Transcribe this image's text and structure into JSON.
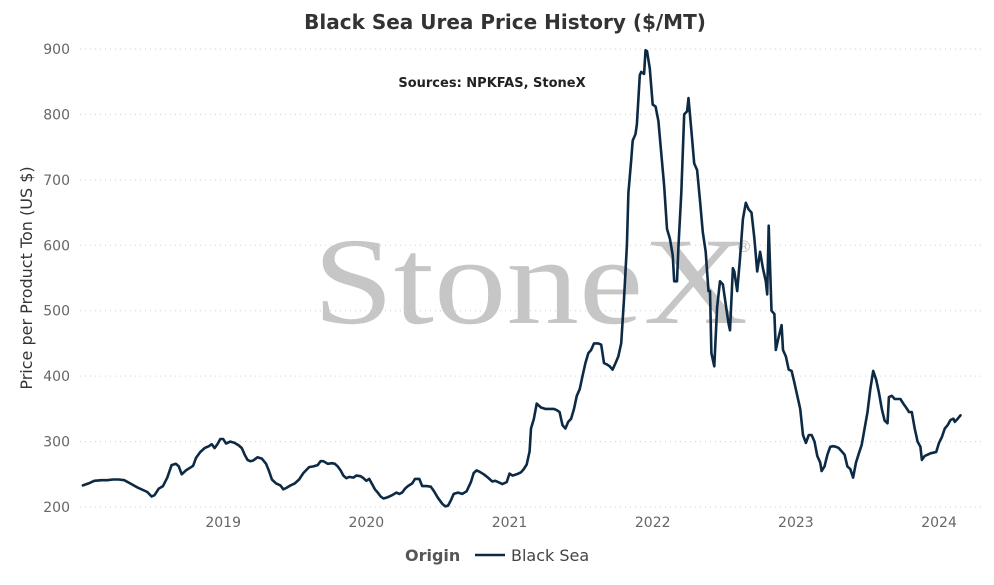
{
  "chart_data": {
    "type": "line",
    "title": "Black Sea Urea Price History ($/MT)",
    "subtitle": "Sources: NPKFAS, StoneX",
    "ylabel": "Price per Product Ton (US $)",
    "xlabel": "",
    "ylim": [
      200,
      900
    ],
    "yticks": [
      "200",
      "300",
      "400",
      "500",
      "600",
      "700",
      "800",
      "900"
    ],
    "xlim": [
      2018.0,
      2024.3
    ],
    "xticks": [
      {
        "value": 2019.0,
        "label": "2019"
      },
      {
        "value": 2020.0,
        "label": "2020"
      },
      {
        "value": 2021.0,
        "label": "2021"
      },
      {
        "value": 2022.0,
        "label": "2022"
      },
      {
        "value": 2023.0,
        "label": "2023"
      },
      {
        "value": 2024.0,
        "label": "2024"
      }
    ],
    "grid": "horizontal dotted",
    "legend": {
      "title": "Origin",
      "position": "bottom-center"
    },
    "watermark": "StoneX",
    "series": [
      {
        "name": "Black Sea",
        "color": "#0d2a45",
        "points": [
          [
            2018.02,
            233
          ],
          [
            2018.06,
            236
          ],
          [
            2018.1,
            240
          ],
          [
            2018.15,
            241
          ],
          [
            2018.19,
            241
          ],
          [
            2018.23,
            242
          ],
          [
            2018.27,
            242
          ],
          [
            2018.31,
            241
          ],
          [
            2018.35,
            236
          ],
          [
            2018.4,
            230
          ],
          [
            2018.44,
            226
          ],
          [
            2018.47,
            223
          ],
          [
            2018.5,
            216
          ],
          [
            2018.52,
            218
          ],
          [
            2018.55,
            228
          ],
          [
            2018.58,
            232
          ],
          [
            2018.61,
            245
          ],
          [
            2018.64,
            264
          ],
          [
            2018.67,
            266
          ],
          [
            2018.69,
            262
          ],
          [
            2018.71,
            250
          ],
          [
            2018.74,
            256
          ],
          [
            2018.77,
            260
          ],
          [
            2018.79,
            263
          ],
          [
            2018.81,
            275
          ],
          [
            2018.84,
            284
          ],
          [
            2018.87,
            290
          ],
          [
            2018.9,
            293
          ],
          [
            2018.92,
            296
          ],
          [
            2018.94,
            290
          ],
          [
            2018.96,
            296
          ],
          [
            2018.98,
            304
          ],
          [
            2019.0,
            304
          ],
          [
            2019.02,
            297
          ],
          [
            2019.05,
            300
          ],
          [
            2019.08,
            298
          ],
          [
            2019.11,
            294
          ],
          [
            2019.13,
            290
          ],
          [
            2019.15,
            280
          ],
          [
            2019.17,
            272
          ],
          [
            2019.19,
            270
          ],
          [
            2019.21,
            271
          ],
          [
            2019.24,
            276
          ],
          [
            2019.27,
            274
          ],
          [
            2019.3,
            266
          ],
          [
            2019.32,
            255
          ],
          [
            2019.34,
            242
          ],
          [
            2019.37,
            236
          ],
          [
            2019.4,
            233
          ],
          [
            2019.42,
            227
          ],
          [
            2019.44,
            229
          ],
          [
            2019.47,
            233
          ],
          [
            2019.5,
            236
          ],
          [
            2019.53,
            242
          ],
          [
            2019.56,
            252
          ],
          [
            2019.6,
            261
          ],
          [
            2019.63,
            262
          ],
          [
            2019.66,
            264
          ],
          [
            2019.68,
            270
          ],
          [
            2019.7,
            270
          ],
          [
            2019.73,
            266
          ],
          [
            2019.76,
            267
          ],
          [
            2019.78,
            266
          ],
          [
            2019.8,
            262
          ],
          [
            2019.82,
            256
          ],
          [
            2019.84,
            248
          ],
          [
            2019.86,
            244
          ],
          [
            2019.88,
            246
          ],
          [
            2019.91,
            245
          ],
          [
            2019.93,
            248
          ],
          [
            2019.96,
            247
          ],
          [
            2019.98,
            244
          ],
          [
            2020.0,
            240
          ],
          [
            2020.02,
            243
          ],
          [
            2020.04,
            235
          ],
          [
            2020.06,
            227
          ],
          [
            2020.08,
            222
          ],
          [
            2020.1,
            216
          ],
          [
            2020.12,
            213
          ],
          [
            2020.15,
            215
          ],
          [
            2020.18,
            218
          ],
          [
            2020.21,
            222
          ],
          [
            2020.23,
            220
          ],
          [
            2020.25,
            222
          ],
          [
            2020.27,
            228
          ],
          [
            2020.29,
            232
          ],
          [
            2020.32,
            236
          ],
          [
            2020.34,
            243
          ],
          [
            2020.37,
            243
          ],
          [
            2020.39,
            232
          ],
          [
            2020.42,
            232
          ],
          [
            2020.45,
            231
          ],
          [
            2020.47,
            225
          ],
          [
            2020.5,
            214
          ],
          [
            2020.53,
            205
          ],
          [
            2020.55,
            201
          ],
          [
            2020.57,
            202
          ],
          [
            2020.59,
            210
          ],
          [
            2020.61,
            220
          ],
          [
            2020.64,
            222
          ],
          [
            2020.67,
            220
          ],
          [
            2020.7,
            224
          ],
          [
            2020.73,
            238
          ],
          [
            2020.75,
            252
          ],
          [
            2020.77,
            256
          ],
          [
            2020.79,
            254
          ],
          [
            2020.82,
            250
          ],
          [
            2020.85,
            245
          ],
          [
            2020.88,
            239
          ],
          [
            2020.9,
            240
          ],
          [
            2020.92,
            238
          ],
          [
            2020.95,
            235
          ],
          [
            2020.98,
            238
          ],
          [
            2021.0,
            251
          ],
          [
            2021.02,
            248
          ],
          [
            2021.05,
            250
          ],
          [
            2021.08,
            253
          ],
          [
            2021.1,
            258
          ],
          [
            2021.12,
            265
          ],
          [
            2021.14,
            285
          ],
          [
            2021.15,
            320
          ],
          [
            2021.17,
            335
          ],
          [
            2021.19,
            358
          ],
          [
            2021.22,
            352
          ],
          [
            2021.25,
            350
          ],
          [
            2021.28,
            350
          ],
          [
            2021.31,
            350
          ],
          [
            2021.33,
            348
          ],
          [
            2021.35,
            345
          ],
          [
            2021.37,
            325
          ],
          [
            2021.39,
            320
          ],
          [
            2021.41,
            330
          ],
          [
            2021.43,
            335
          ],
          [
            2021.45,
            350
          ],
          [
            2021.47,
            370
          ],
          [
            2021.49,
            380
          ],
          [
            2021.51,
            400
          ],
          [
            2021.53,
            420
          ],
          [
            2021.55,
            435
          ],
          [
            2021.57,
            440
          ],
          [
            2021.59,
            450
          ],
          [
            2021.62,
            450
          ],
          [
            2021.64,
            448
          ],
          [
            2021.66,
            420
          ],
          [
            2021.68,
            418
          ],
          [
            2021.7,
            415
          ],
          [
            2021.72,
            410
          ],
          [
            2021.74,
            420
          ],
          [
            2021.76,
            430
          ],
          [
            2021.78,
            450
          ],
          [
            2021.8,
            520
          ],
          [
            2021.82,
            600
          ],
          [
            2021.83,
            680
          ],
          [
            2021.85,
            730
          ],
          [
            2021.86,
            760
          ],
          [
            2021.88,
            770
          ],
          [
            2021.89,
            785
          ],
          [
            2021.91,
            860
          ],
          [
            2021.92,
            865
          ],
          [
            2021.94,
            862
          ],
          [
            2021.95,
            898
          ],
          [
            2021.96,
            897
          ],
          [
            2021.98,
            870
          ],
          [
            2022.0,
            815
          ],
          [
            2022.02,
            812
          ],
          [
            2022.04,
            790
          ],
          [
            2022.06,
            740
          ],
          [
            2022.08,
            690
          ],
          [
            2022.1,
            625
          ],
          [
            2022.12,
            610
          ],
          [
            2022.14,
            585
          ],
          [
            2022.15,
            545
          ],
          [
            2022.17,
            545
          ],
          [
            2022.18,
            600
          ],
          [
            2022.2,
            680
          ],
          [
            2022.22,
            800
          ],
          [
            2022.24,
            805
          ],
          [
            2022.25,
            825
          ],
          [
            2022.27,
            775
          ],
          [
            2022.29,
            725
          ],
          [
            2022.31,
            715
          ],
          [
            2022.33,
            670
          ],
          [
            2022.35,
            620
          ],
          [
            2022.37,
            590
          ],
          [
            2022.39,
            530
          ],
          [
            2022.4,
            530
          ],
          [
            2022.41,
            435
          ],
          [
            2022.43,
            415
          ],
          [
            2022.45,
            505
          ],
          [
            2022.47,
            545
          ],
          [
            2022.49,
            540
          ],
          [
            2022.51,
            510
          ],
          [
            2022.53,
            480
          ],
          [
            2022.54,
            470
          ],
          [
            2022.56,
            565
          ],
          [
            2022.57,
            560
          ],
          [
            2022.59,
            530
          ],
          [
            2022.61,
            580
          ],
          [
            2022.63,
            640
          ],
          [
            2022.65,
            665
          ],
          [
            2022.67,
            655
          ],
          [
            2022.69,
            650
          ],
          [
            2022.71,
            610
          ],
          [
            2022.73,
            560
          ],
          [
            2022.75,
            590
          ],
          [
            2022.77,
            565
          ],
          [
            2022.79,
            545
          ],
          [
            2022.8,
            525
          ],
          [
            2022.81,
            630
          ],
          [
            2022.83,
            500
          ],
          [
            2022.85,
            495
          ],
          [
            2022.86,
            440
          ],
          [
            2022.88,
            460
          ],
          [
            2022.9,
            478
          ],
          [
            2022.91,
            440
          ],
          [
            2022.93,
            430
          ],
          [
            2022.95,
            410
          ],
          [
            2022.97,
            408
          ],
          [
            2022.99,
            390
          ],
          [
            2023.01,
            370
          ],
          [
            2023.03,
            350
          ],
          [
            2023.05,
            310
          ],
          [
            2023.07,
            298
          ],
          [
            2023.09,
            310
          ],
          [
            2023.11,
            310
          ],
          [
            2023.13,
            300
          ],
          [
            2023.15,
            278
          ],
          [
            2023.17,
            268
          ],
          [
            2023.18,
            255
          ],
          [
            2023.2,
            262
          ],
          [
            2023.22,
            280
          ],
          [
            2023.24,
            292
          ],
          [
            2023.26,
            293
          ],
          [
            2023.28,
            292
          ],
          [
            2023.3,
            290
          ],
          [
            2023.32,
            285
          ],
          [
            2023.34,
            280
          ],
          [
            2023.36,
            262
          ],
          [
            2023.38,
            258
          ],
          [
            2023.4,
            245
          ],
          [
            2023.42,
            268
          ],
          [
            2023.44,
            282
          ],
          [
            2023.46,
            295
          ],
          [
            2023.48,
            320
          ],
          [
            2023.5,
            345
          ],
          [
            2023.52,
            380
          ],
          [
            2023.54,
            408
          ],
          [
            2023.56,
            395
          ],
          [
            2023.58,
            375
          ],
          [
            2023.6,
            350
          ],
          [
            2023.62,
            332
          ],
          [
            2023.64,
            328
          ],
          [
            2023.65,
            368
          ],
          [
            2023.67,
            370
          ],
          [
            2023.69,
            365
          ],
          [
            2023.71,
            365
          ],
          [
            2023.73,
            365
          ],
          [
            2023.75,
            358
          ],
          [
            2023.77,
            352
          ],
          [
            2023.79,
            345
          ],
          [
            2023.81,
            345
          ],
          [
            2023.83,
            320
          ],
          [
            2023.85,
            300
          ],
          [
            2023.87,
            292
          ],
          [
            2023.88,
            272
          ],
          [
            2023.9,
            278
          ],
          [
            2023.92,
            280
          ],
          [
            2023.94,
            282
          ],
          [
            2023.96,
            283
          ],
          [
            2023.98,
            284
          ],
          [
            2024.0,
            298
          ],
          [
            2024.02,
            307
          ],
          [
            2024.04,
            320
          ],
          [
            2024.06,
            325
          ],
          [
            2024.08,
            333
          ],
          [
            2024.1,
            335
          ],
          [
            2024.11,
            330
          ],
          [
            2024.13,
            335
          ],
          [
            2024.15,
            340
          ]
        ]
      }
    ]
  }
}
